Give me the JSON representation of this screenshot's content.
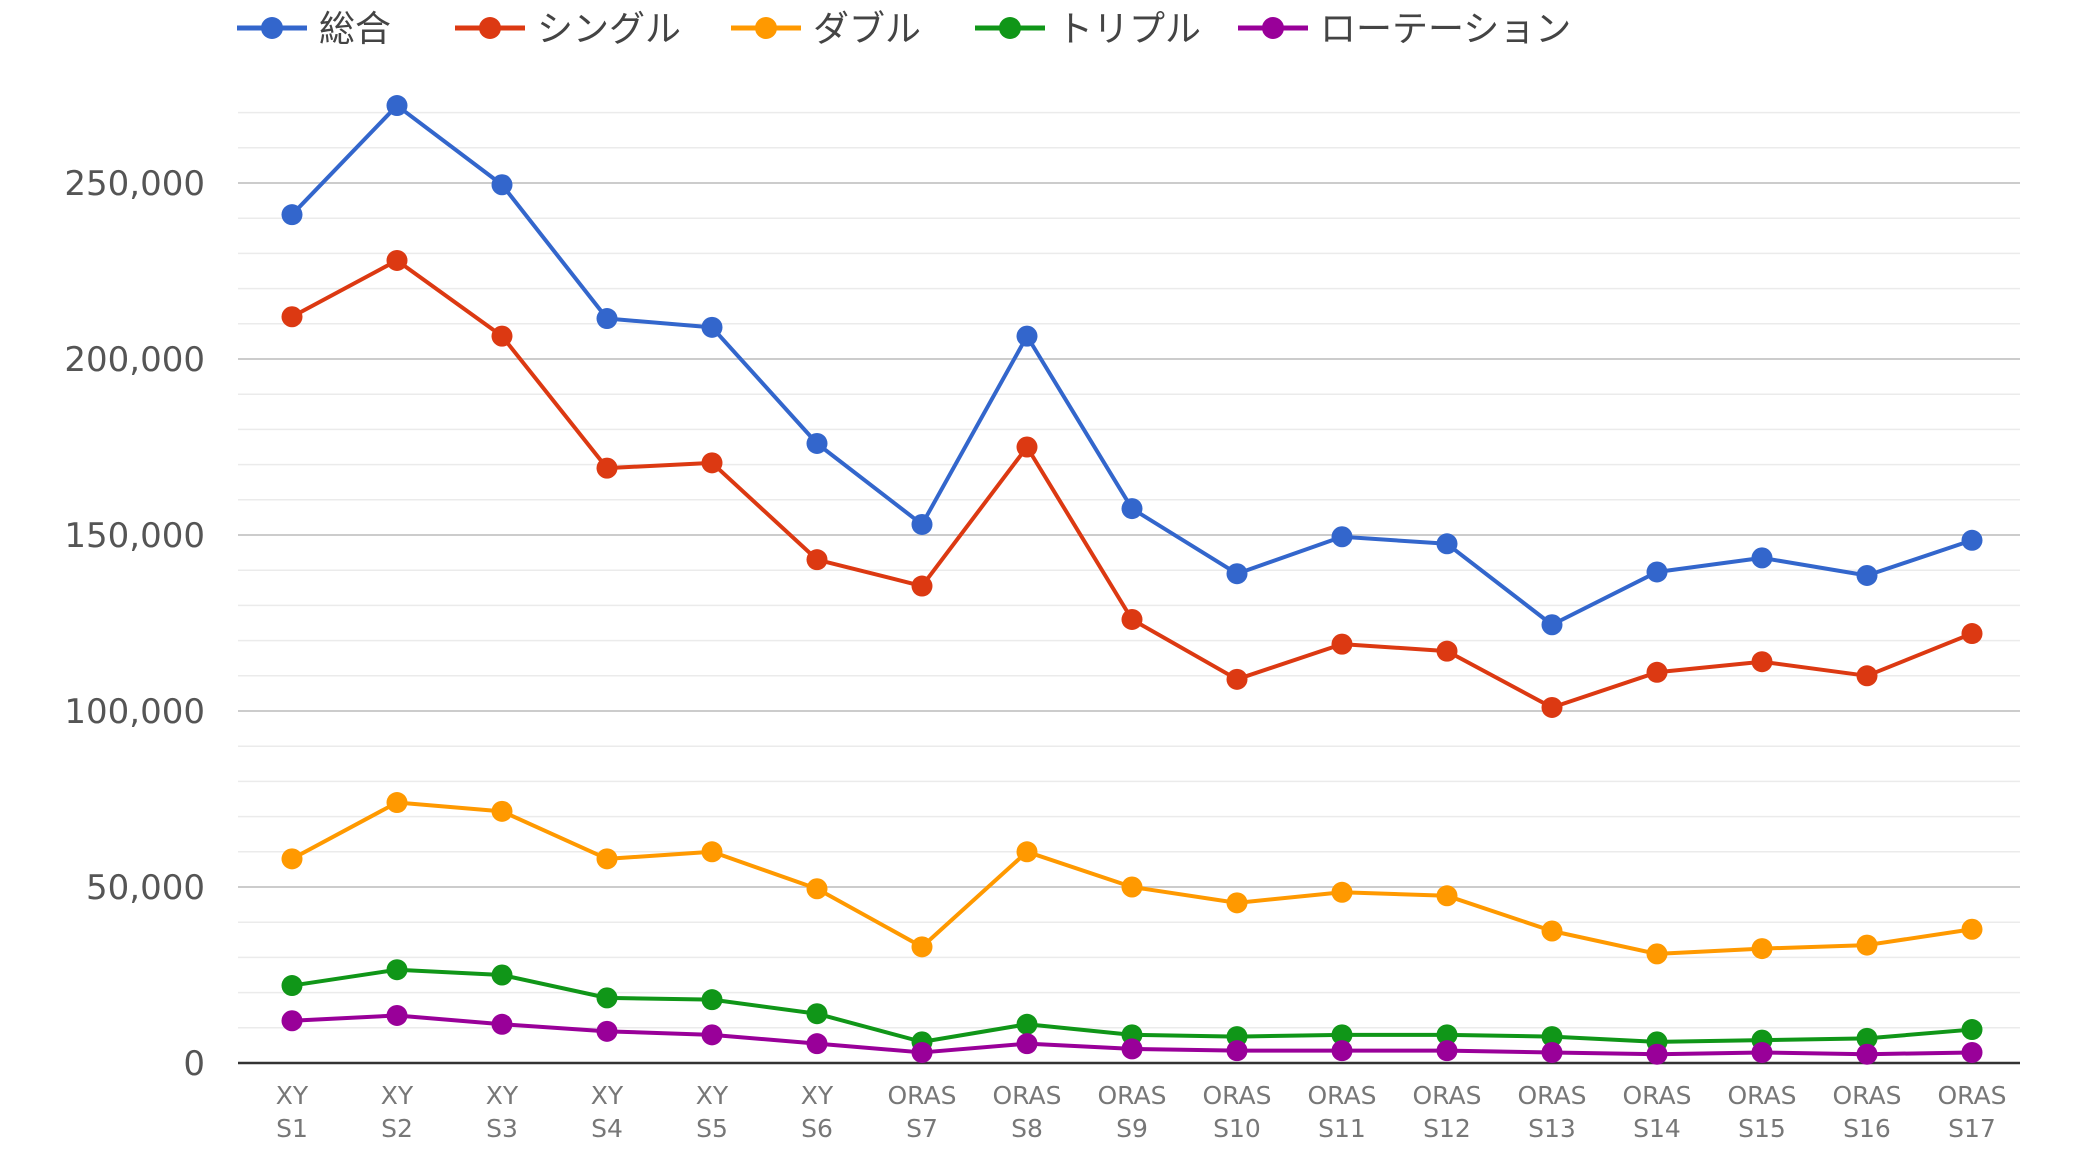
{
  "chart_data": {
    "type": "line",
    "title": "",
    "xlabel": "",
    "ylabel": "",
    "ylim": [
      0,
      275000
    ],
    "yticks": [
      0,
      50000,
      100000,
      150000,
      200000,
      250000
    ],
    "ytick_labels": [
      "0",
      "50,000",
      "100,000",
      "150,000",
      "200,000",
      "250,000"
    ],
    "grid": true,
    "minor_gridlines_per_major": 5,
    "legend_position": "top-left",
    "categories": [
      [
        "XY",
        "S1"
      ],
      [
        "XY",
        "S2"
      ],
      [
        "XY",
        "S3"
      ],
      [
        "XY",
        "S4"
      ],
      [
        "XY",
        "S5"
      ],
      [
        "XY",
        "S6"
      ],
      [
        "ORAS",
        "S7"
      ],
      [
        "ORAS",
        "S8"
      ],
      [
        "ORAS",
        "S9"
      ],
      [
        "ORAS",
        "S10"
      ],
      [
        "ORAS",
        "S11"
      ],
      [
        "ORAS",
        "S12"
      ],
      [
        "ORAS",
        "S13"
      ],
      [
        "ORAS",
        "S14"
      ],
      [
        "ORAS",
        "S15"
      ],
      [
        "ORAS",
        "S16"
      ],
      [
        "ORAS",
        "S17"
      ]
    ],
    "series": [
      {
        "name": "総合",
        "color": "#3366cc",
        "values": [
          241000,
          272000,
          249500,
          211500,
          209000,
          176000,
          153000,
          206500,
          157500,
          139000,
          149500,
          147500,
          124500,
          139500,
          143500,
          138500,
          148500
        ]
      },
      {
        "name": "シングル",
        "color": "#dc3912",
        "values": [
          212000,
          228000,
          206500,
          169000,
          170500,
          143000,
          135500,
          175000,
          126000,
          109000,
          119000,
          117000,
          101000,
          111000,
          114000,
          110000,
          122000
        ]
      },
      {
        "name": "ダブル",
        "color": "#ff9900",
        "values": [
          58000,
          74000,
          71500,
          58000,
          60000,
          49500,
          33000,
          60000,
          50000,
          45500,
          48500,
          47500,
          37500,
          31000,
          32500,
          33500,
          38000
        ]
      },
      {
        "name": "トリプル",
        "color": "#109618",
        "values": [
          22000,
          26500,
          25000,
          18500,
          18000,
          14000,
          6000,
          11000,
          8000,
          7500,
          8000,
          8000,
          7500,
          6000,
          6500,
          7000,
          9500
        ]
      },
      {
        "name": "ローテーション",
        "color": "#990099",
        "values": [
          12000,
          13500,
          11000,
          9000,
          8000,
          5500,
          3000,
          5500,
          4000,
          3500,
          3500,
          3500,
          3000,
          2500,
          3000,
          2500,
          3000
        ]
      }
    ]
  }
}
